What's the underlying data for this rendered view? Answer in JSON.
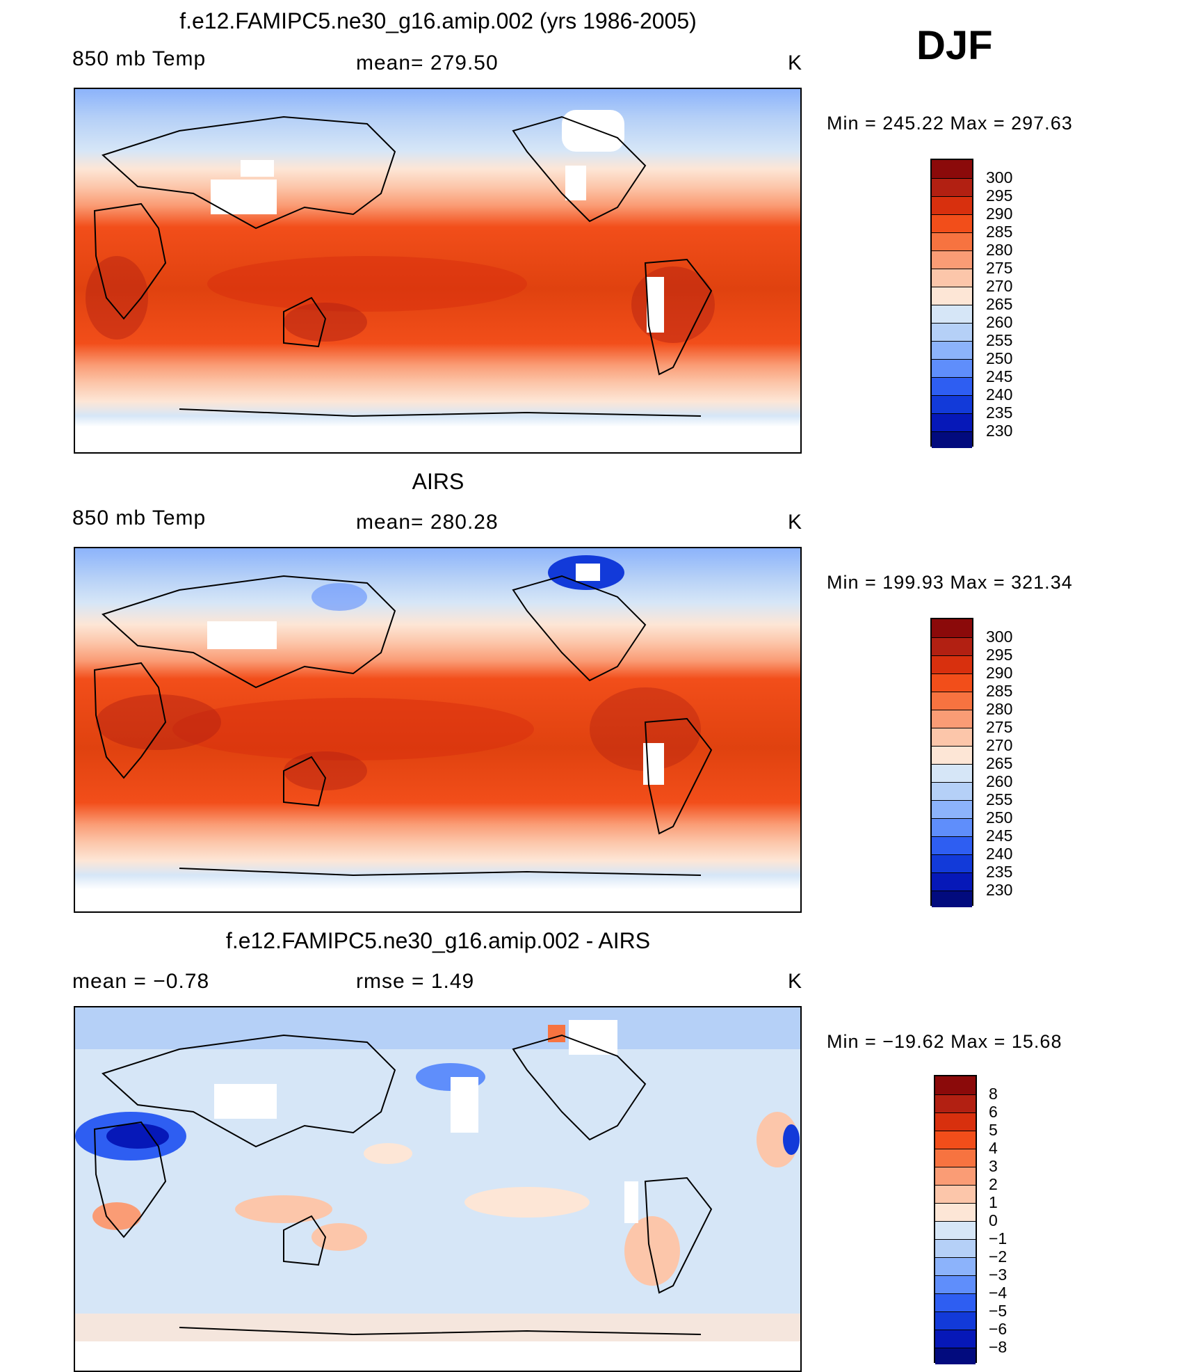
{
  "season": "DJF",
  "panels": [
    {
      "id": "model",
      "title": "f.e12.FAMIPC5.ne30_g16.amip.002 (yrs 1986-2005)",
      "left_label": "850 mb Temp",
      "center_label": "mean=  279.50",
      "units": "K",
      "minmax": "Min  =  245.22  Max  =  297.63",
      "colorbar_labels": [
        "300",
        "295",
        "290",
        "285",
        "280",
        "275",
        "270",
        "265",
        "260",
        "255",
        "250",
        "245",
        "240",
        "235",
        "230"
      ],
      "colorbar_colors": [
        "#8b0a0a",
        "#b22012",
        "#d8300e",
        "#f24e1a",
        "#f77340",
        "#fa9c75",
        "#fcc6aa",
        "#fde6d6",
        "#d6e6f7",
        "#b5d0f7",
        "#8cb3fb",
        "#5f8efb",
        "#2e5ef2",
        "#123ad9",
        "#0618b8",
        "#020b7e"
      ]
    },
    {
      "id": "obs",
      "title": "AIRS",
      "left_label": "850 mb Temp",
      "center_label": "mean=  280.28",
      "units": "K",
      "minmax": "Min  =  199.93  Max  =  321.34",
      "colorbar_labels": [
        "300",
        "295",
        "290",
        "285",
        "280",
        "275",
        "270",
        "265",
        "260",
        "255",
        "250",
        "245",
        "240",
        "235",
        "230"
      ],
      "colorbar_colors": [
        "#8b0a0a",
        "#b22012",
        "#d8300e",
        "#f24e1a",
        "#f77340",
        "#fa9c75",
        "#fcc6aa",
        "#fde6d6",
        "#d6e6f7",
        "#b5d0f7",
        "#8cb3fb",
        "#5f8efb",
        "#2e5ef2",
        "#123ad9",
        "#0618b8",
        "#020b7e"
      ]
    },
    {
      "id": "diff",
      "title": "f.e12.FAMIPC5.ne30_g16.amip.002 - AIRS",
      "left_label": "mean =    −0.78",
      "center_label": "rmse =     1.49",
      "units": "K",
      "minmax": "Min  =  −19.62  Max  =    15.68",
      "colorbar_labels": [
        "8",
        "6",
        "5",
        "4",
        "3",
        "2",
        "1",
        "0",
        "−1",
        "−2",
        "−3",
        "−4",
        "−5",
        "−6",
        "−8"
      ],
      "colorbar_colors": [
        "#8b0a0a",
        "#b22012",
        "#d8300e",
        "#f24e1a",
        "#f77340",
        "#fa9c75",
        "#fcc6aa",
        "#fde6d6",
        "#d6e6f7",
        "#b5d0f7",
        "#8cb3fb",
        "#5f8efb",
        "#2e5ef2",
        "#123ad9",
        "#0618b8",
        "#020b7e"
      ]
    }
  ]
}
